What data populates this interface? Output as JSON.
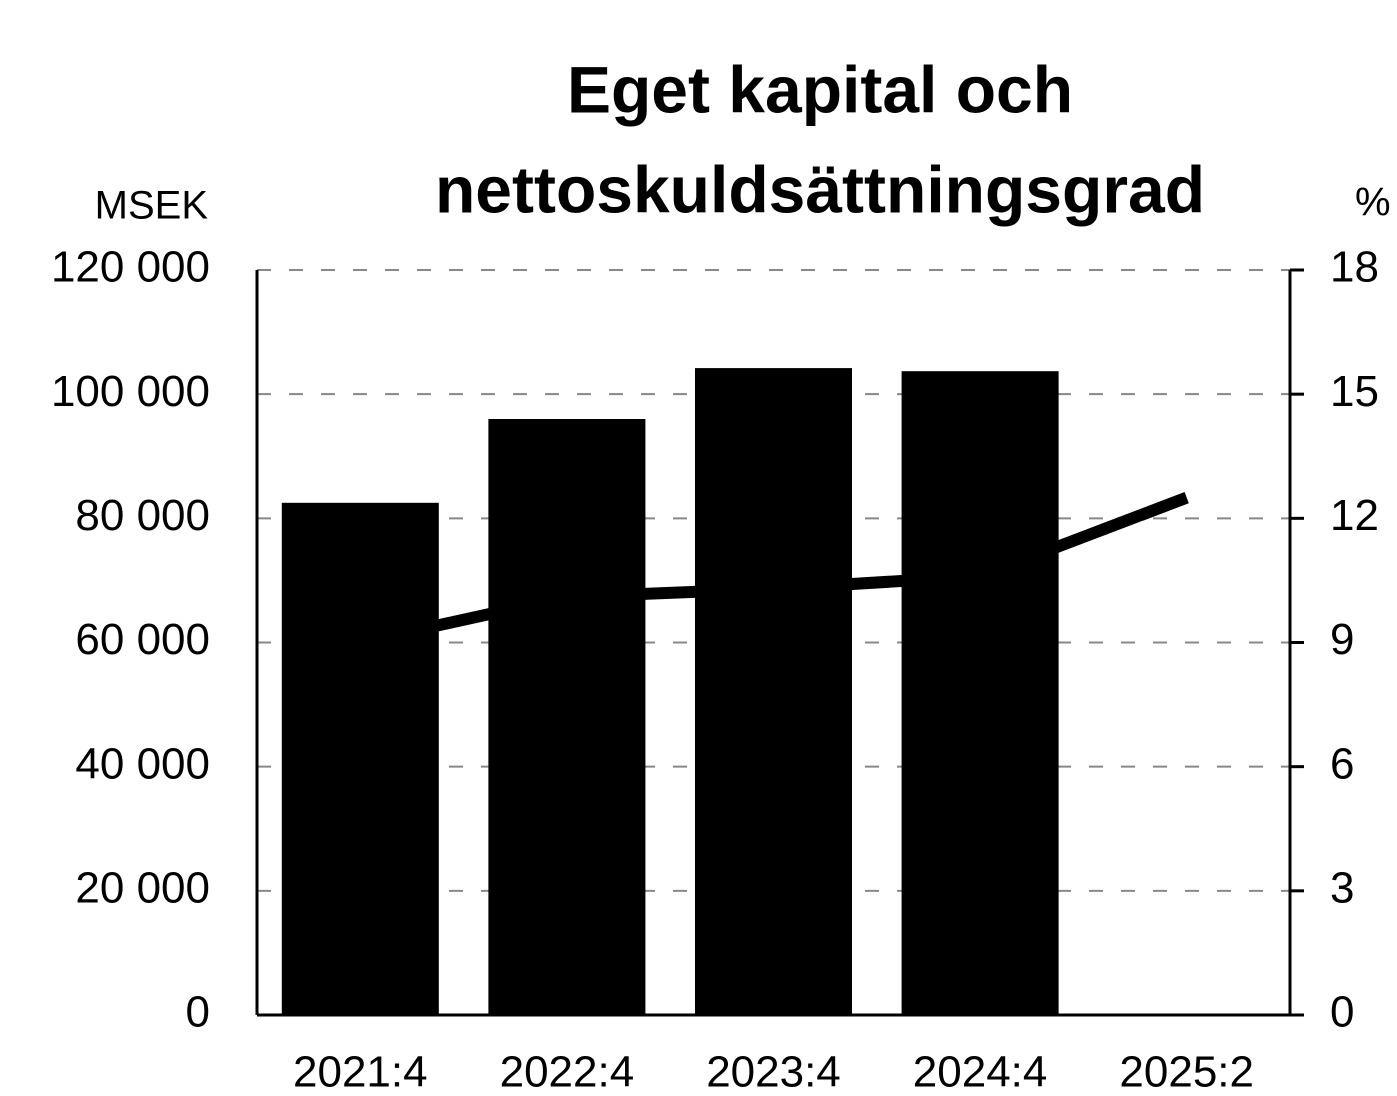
{
  "chart_data": {
    "type": "bar",
    "title": [
      "Eget kapital och",
      "nettoskuldsättningsgrad"
    ],
    "y_label": "MSEK",
    "y2_label": "%",
    "categories": [
      "2021:4",
      "2022:4",
      "2023:4",
      "2024:4",
      "2025:2"
    ],
    "series": [
      {
        "name": "Eget kapital",
        "type": "bar",
        "color": "#000000",
        "values": [
          82500,
          96000,
          104200,
          103700,
          null
        ]
      },
      {
        "name": "Nettoskuldsättningsgrad",
        "type": "line",
        "axis": "y2",
        "color": "#000000",
        "values": [
          9.0,
          10.1,
          10.3,
          10.6,
          12.5
        ]
      }
    ],
    "ylim": [
      0,
      120000
    ],
    "yticks": [
      0,
      {
        "value": 20000,
        "label": "20 000"
      },
      {
        "value": 40000,
        "label": "40 000"
      },
      {
        "value": 60000,
        "label": "60 000"
      },
      {
        "value": 80000,
        "label": "80 000"
      },
      {
        "value": 100000,
        "label": "100 000"
      },
      {
        "value": 120000,
        "label": "120 000"
      }
    ],
    "y2lim": [
      0,
      18
    ],
    "y2ticks": [
      0,
      3,
      6,
      9,
      12,
      15,
      18
    ],
    "grid": true
  }
}
